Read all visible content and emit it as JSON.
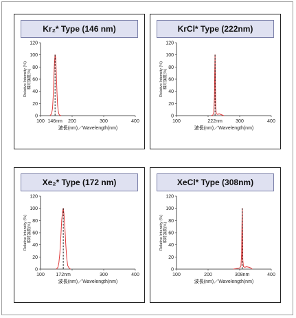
{
  "colors": {
    "curve": "#e03a3a",
    "peak_marker": "#000000",
    "title_bg": "#dfe1f1"
  },
  "panels": [
    {
      "title": "Kr₂* Type (146 nm)",
      "peak_label": "146nm"
    },
    {
      "title": "KrCl* Type (222nm)",
      "peak_label": "222nm"
    },
    {
      "title": "Xe₂* Type (172 nm)",
      "peak_label": "172nm"
    },
    {
      "title": "XeCl* Type (308nm)",
      "peak_label": "308nm"
    }
  ],
  "chart_data": [
    {
      "type": "line",
      "title": "Kr₂* Type (146 nm)",
      "xlabel": "波長(nm)／Wavelength(nm)",
      "ylabel": "Relative Intensity (%) 相対強度(%)",
      "xlim": [
        100,
        400
      ],
      "ylim": [
        0,
        120
      ],
      "xticks": [
        100,
        200,
        300,
        400
      ],
      "yticks": [
        0,
        20,
        40,
        60,
        80,
        100,
        120
      ],
      "peak_marker": {
        "x": 146,
        "label": "146nm"
      },
      "series": [
        {
          "x": [
            130,
            135,
            138,
            140,
            142,
            144,
            146,
            148,
            150,
            152,
            154,
            156,
            158,
            160,
            165
          ],
          "y": [
            0,
            3,
            12,
            30,
            60,
            85,
            100,
            95,
            70,
            40,
            18,
            8,
            3,
            1,
            0
          ]
        }
      ],
      "grid": false
    },
    {
      "type": "line",
      "title": "KrCl* Type (222nm)",
      "xlabel": "波長(nm)／Wavelength(nm)",
      "ylabel": "Relative Intensity (%) 相対強度(%)",
      "xlim": [
        100,
        400
      ],
      "ylim": [
        0,
        120
      ],
      "xticks": [
        100,
        200,
        300,
        400
      ],
      "yticks": [
        0,
        20,
        40,
        60,
        80,
        100,
        120
      ],
      "peak_marker": {
        "x": 222,
        "label": "222nm"
      },
      "series": [
        {
          "x": [
            210,
            215,
            218,
            220,
            221,
            222,
            223,
            224,
            226,
            230,
            235,
            240,
            245,
            250
          ],
          "y": [
            0,
            1,
            5,
            30,
            70,
            100,
            60,
            15,
            3,
            2,
            3,
            2,
            1,
            0
          ]
        }
      ],
      "grid": false
    },
    {
      "type": "line",
      "title": "Xe₂* Type (172 nm)",
      "xlabel": "波長(nm)／Wavelength(nm)",
      "ylabel": "Relative Intensity (%) 相対強度(%)",
      "xlim": [
        100,
        400
      ],
      "ylim": [
        0,
        120
      ],
      "xticks": [
        100,
        200,
        300,
        400
      ],
      "yticks": [
        0,
        20,
        40,
        60,
        80,
        100,
        120
      ],
      "peak_marker": {
        "x": 172,
        "label": "172nm"
      },
      "series": [
        {
          "x": [
            150,
            155,
            158,
            161,
            164,
            167,
            170,
            172,
            174,
            177,
            180,
            183,
            186,
            190,
            195
          ],
          "y": [
            0,
            3,
            10,
            25,
            50,
            80,
            96,
            100,
            92,
            70,
            40,
            18,
            6,
            2,
            0
          ]
        }
      ],
      "grid": false
    },
    {
      "type": "line",
      "title": "XeCl* Type (308nm)",
      "xlabel": "波長(nm)／Wavelength(nm)",
      "ylabel": "Relative Intensity (%) 相対強度(%)",
      "xlim": [
        100,
        400
      ],
      "ylim": [
        0,
        120
      ],
      "xticks": [
        100,
        200,
        300,
        400
      ],
      "yticks": [
        0,
        20,
        40,
        60,
        80,
        100,
        120
      ],
      "peak_marker": {
        "x": 308,
        "label": "308nm"
      },
      "series": [
        {
          "x": [
            280,
            290,
            300,
            304,
            306,
            307,
            308,
            309,
            310,
            312,
            316,
            322,
            330,
            335,
            340
          ],
          "y": [
            0,
            1,
            2,
            5,
            25,
            65,
            100,
            60,
            15,
            4,
            3,
            4,
            3,
            2,
            0
          ]
        }
      ],
      "grid": false
    }
  ]
}
